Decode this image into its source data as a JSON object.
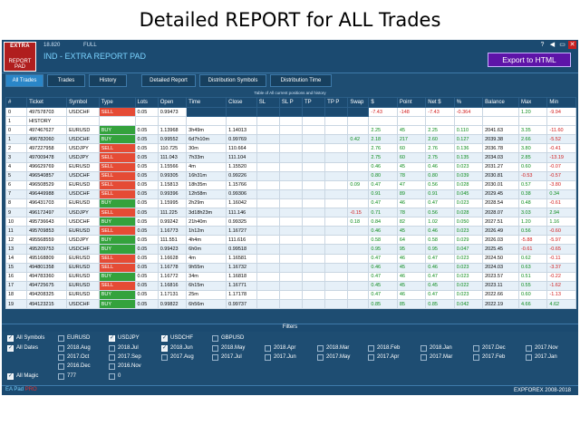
{
  "caption": "Detailed REPORT for ALL Trades",
  "titlebar": {
    "logo_top": "EXTRA",
    "logo_bottom": "REPORT PAD",
    "version": "18.820",
    "mode": "FULL",
    "title": "IND - EXTRA REPORT PAD",
    "win_buttons": [
      "?",
      "◀",
      "▭",
      "✕"
    ],
    "export_label": "Export to HTML"
  },
  "tabs": [
    "All Trades",
    "Trades",
    "History",
    "Detailed Report",
    "Distribution Symbols",
    "Distribution Time"
  ],
  "table": {
    "caption": "Table of All current positions and history",
    "headers": [
      "#",
      "Ticket",
      "Symbol",
      "Type",
      "Lots",
      "Open",
      "Time",
      "Close",
      "SL",
      "SL P",
      "TP",
      "TP P",
      "Swap",
      "$",
      "Point",
      "Net $",
      "%",
      "Balance",
      "Max",
      "Min"
    ],
    "rows": [
      [
        "0",
        "497578703",
        "USDCHF",
        "SELL",
        "0.05",
        "0.99473",
        "",
        "",
        "",
        "",
        "",
        "",
        "",
        "-7.43",
        "-148",
        "-7.43",
        "-0.364",
        "",
        "1.20",
        "-9.94"
      ],
      [
        "1",
        "HISTORY",
        "",
        "",
        "",
        "",
        "",
        "",
        "",
        "",
        "",
        "",
        "",
        "",
        "",
        "",
        "",
        "",
        "",
        ""
      ],
      [
        "0",
        "497467627",
        "EURUSD",
        "BUY",
        "0.05",
        "1.13968",
        "3h49m",
        "1.14013",
        "",
        "",
        "",
        "",
        "",
        "2.25",
        "45",
        "2.25",
        "0.110",
        "2041.63",
        "3.35",
        "-11.60"
      ],
      [
        "1",
        "496782060",
        "USDCHF",
        "BUY",
        "0.05",
        "0.99552",
        "6d7h10m",
        "0.99769",
        "",
        "",
        "",
        "",
        "0.42",
        "2.18",
        "217",
        "2.60",
        "0.127",
        "2039.38",
        "2.66",
        "-5.52"
      ],
      [
        "2",
        "497227958",
        "USDJPY",
        "SELL",
        "0.05",
        "110.725",
        "30m",
        "110.664",
        "",
        "",
        "",
        "",
        "",
        "2.76",
        "60",
        "2.76",
        "0.136",
        "2036.78",
        "3.80",
        "-0.41"
      ],
      [
        "3",
        "497009478",
        "USDJPY",
        "SELL",
        "0.05",
        "111.043",
        "7h33m",
        "111.104",
        "",
        "",
        "",
        "",
        "",
        "2.75",
        "60",
        "2.75",
        "0.135",
        "2034.03",
        "2.85",
        "-13.19"
      ],
      [
        "4",
        "496629769",
        "EURUSD",
        "SELL",
        "0.05",
        "1.15566",
        "4m",
        "1.15520",
        "",
        "",
        "",
        "",
        "",
        "0.46",
        "45",
        "0.46",
        "0.023",
        "2031.27",
        "0.60",
        "-0.07"
      ],
      [
        "5",
        "496540857",
        "USDCHF",
        "SELL",
        "0.05",
        "0.99305",
        "16h31m",
        "0.99226",
        "",
        "",
        "",
        "",
        "",
        "0.80",
        "78",
        "0.80",
        "0.039",
        "2030.81",
        "-0.53",
        "-0.57"
      ],
      [
        "6",
        "496508529",
        "EURUSD",
        "SELL",
        "0.05",
        "1.15813",
        "18h35m",
        "1.15766",
        "",
        "",
        "",
        "",
        "0.09",
        "0.47",
        "47",
        "0.56",
        "0.028",
        "2030.01",
        "0.57",
        "-3.80"
      ],
      [
        "7",
        "496449988",
        "USDCHF",
        "SELL",
        "0.05",
        "0.99396",
        "12h58m",
        "0.99306",
        "",
        "",
        "",
        "",
        "",
        "0.91",
        "89",
        "0.91",
        "0.045",
        "2029.45",
        "0.38",
        "0.34"
      ],
      [
        "8",
        "496431703",
        "EURUSD",
        "BUY",
        "0.05",
        "1.15995",
        "2h29m",
        "1.16042",
        "",
        "",
        "",
        "",
        "",
        "0.47",
        "46",
        "0.47",
        "0.023",
        "2028.54",
        "0.48",
        "-0.61"
      ],
      [
        "9",
        "496172497",
        "USDJPY",
        "SELL",
        "0.05",
        "111.225",
        "3d18h23m",
        "111.146",
        "",
        "",
        "",
        "",
        "-0.15",
        "0.71",
        "78",
        "0.56",
        "0.028",
        "2028.07",
        "3.03",
        "2.94"
      ],
      [
        "10",
        "495736643",
        "USDCHF",
        "BUY",
        "0.05",
        "0.99242",
        "21h40m",
        "0.99325",
        "",
        "",
        "",
        "",
        "0.18",
        "0.84",
        "82",
        "1.02",
        "0.050",
        "2027.51",
        "1.20",
        "1.16"
      ],
      [
        "11",
        "495709853",
        "EURUSD",
        "SELL",
        "0.05",
        "1.16773",
        "1h12m",
        "1.16727",
        "",
        "",
        "",
        "",
        "",
        "0.46",
        "45",
        "0.46",
        "0.023",
        "2026.49",
        "0.56",
        "-0.60"
      ],
      [
        "12",
        "495568559",
        "USDJPY",
        "BUY",
        "0.05",
        "111.551",
        "4h4m",
        "111.616",
        "",
        "",
        "",
        "",
        "",
        "0.58",
        "64",
        "0.58",
        "0.029",
        "2026.03",
        "-5.88",
        "-5.97"
      ],
      [
        "13",
        "495209753",
        "USDCHF",
        "BUY",
        "0.05",
        "0.99423",
        "6h0m",
        "0.99518",
        "",
        "",
        "",
        "",
        "",
        "0.95",
        "95",
        "0.95",
        "0.047",
        "2025.45",
        "-0.61",
        "-0.65"
      ],
      [
        "14",
        "495168809",
        "EURUSD",
        "SELL",
        "0.05",
        "1.16628",
        "4m",
        "1.16581",
        "",
        "",
        "",
        "",
        "",
        "0.47",
        "46",
        "0.47",
        "0.023",
        "2024.50",
        "0.62",
        "-0.11"
      ],
      [
        "15",
        "494801358",
        "EURUSD",
        "SELL",
        "0.05",
        "1.16778",
        "9h55m",
        "1.16732",
        "",
        "",
        "",
        "",
        "",
        "0.46",
        "45",
        "0.46",
        "0.023",
        "2024.03",
        "0.63",
        "-3.37"
      ],
      [
        "16",
        "494783360",
        "EURUSD",
        "BUY",
        "0.05",
        "1.16772",
        "34m",
        "1.16818",
        "",
        "",
        "",
        "",
        "",
        "0.47",
        "46",
        "0.47",
        "0.023",
        "2023.57",
        "0.51",
        "-0.22"
      ],
      [
        "17",
        "494725675",
        "EURUSD",
        "SELL",
        "0.05",
        "1.16816",
        "6h15m",
        "1.16771",
        "",
        "",
        "",
        "",
        "",
        "0.45",
        "45",
        "0.45",
        "0.022",
        "2023.11",
        "0.55",
        "-1.62"
      ],
      [
        "18",
        "494208325",
        "EURUSD",
        "BUY",
        "0.05",
        "1.17131",
        "25m",
        "1.17178",
        "",
        "",
        "",
        "",
        "",
        "0.47",
        "46",
        "0.47",
        "0.023",
        "2022.66",
        "0.60",
        "-1.13"
      ],
      [
        "19",
        "494123215",
        "USDCHF",
        "BUY",
        "0.05",
        "0.99822",
        "6h56m",
        "0.99737",
        "",
        "",
        "",
        "",
        "",
        "0.85",
        "85",
        "0.85",
        "0.042",
        "2022.19",
        "4.66",
        "4.62"
      ]
    ]
  },
  "filters": {
    "title": "Filters",
    "symbols": [
      {
        "label": "All Symbols",
        "checked": true
      },
      {
        "label": "EURUSD",
        "checked": false
      },
      {
        "label": "USDJPY",
        "checked": true
      },
      {
        "label": "USDCHF",
        "checked": true
      },
      {
        "label": "GBPUSD",
        "checked": false
      }
    ],
    "all_dates": {
      "label": "All Dates",
      "checked": true
    },
    "dates_row1": [
      "2018.Aug",
      "2018.Jul",
      "2018.Jun",
      "2018.May",
      "2018.Apr",
      "2018.Mar",
      "2018.Feb",
      "2018.Jan",
      "2017.Dec",
      "2017.Nov"
    ],
    "dates_row1_checked": [
      false,
      false,
      true,
      false,
      false,
      false,
      false,
      false,
      false,
      false
    ],
    "dates_row2": [
      "2017.Oct",
      "2017.Sep",
      "2017.Aug",
      "2017.Jul",
      "2017.Jun",
      "2017.May",
      "2017.Apr",
      "2017.Mar",
      "2017.Feb",
      "2017.Jan"
    ],
    "dates_row3": [
      "2016.Dec",
      "2016.Nov"
    ],
    "all_magic": {
      "label": "All Magic",
      "checked": true
    },
    "magics": [
      "777",
      "0"
    ]
  },
  "footer": {
    "brand_prefix": "EA Pad",
    "brand_suffix": "PRO",
    "copyright": "EXPFOREX 2008-2018"
  },
  "colors": {
    "panel": "#1e4d72",
    "buy": "#34a23c",
    "sell": "#e54b35",
    "export": "#5e14a8",
    "active_tab": "#2a86c8"
  }
}
